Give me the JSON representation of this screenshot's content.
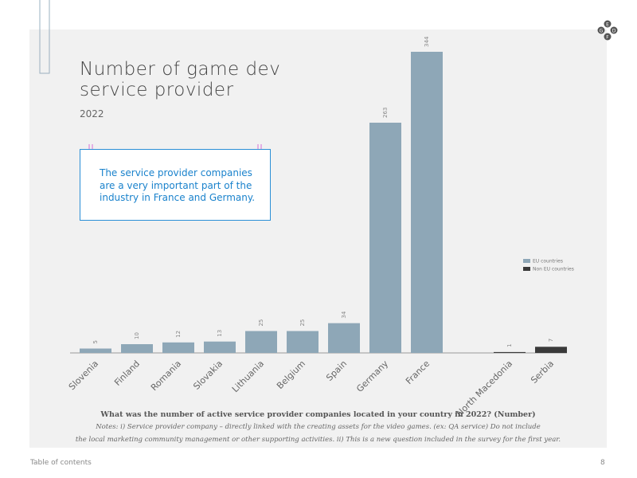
{
  "chart_data": {
    "type": "bar",
    "title": "Number of game dev service provider",
    "subtitle": "2022",
    "annotation": "The service provider companies are a very important part of the industry in France and Germany.",
    "categories": [
      "Slovenia",
      "Finland",
      "Romania",
      "Slovakia",
      "Lithuania",
      "Belgium",
      "Spain",
      "Germany",
      "France",
      null,
      "North Macedonia",
      "Serbia"
    ],
    "series": [
      {
        "name": "EU countries",
        "color": "#8ea7b7",
        "values": [
          5,
          10,
          12,
          13,
          25,
          25,
          34,
          263,
          344,
          null,
          null,
          null
        ]
      },
      {
        "name": "Non EU countries",
        "color": "#3a3a3a",
        "values": [
          null,
          null,
          null,
          null,
          null,
          null,
          null,
          null,
          null,
          null,
          1,
          7
        ]
      }
    ],
    "legend": "right",
    "question": "What was the number of active service provider companies located in your country in 2022? (Number)",
    "notes": [
      "Notes: i) Service provider company – directly linked with the creating assets for the video games. (ex: QA service) Do not include",
      "the local marketing community management or other supporting activities. ii) This is a new question included in the survey for the first year."
    ]
  },
  "footer": {
    "link": "Table of contents",
    "page": "8"
  },
  "logo": [
    "E",
    "G",
    "D",
    "F"
  ]
}
